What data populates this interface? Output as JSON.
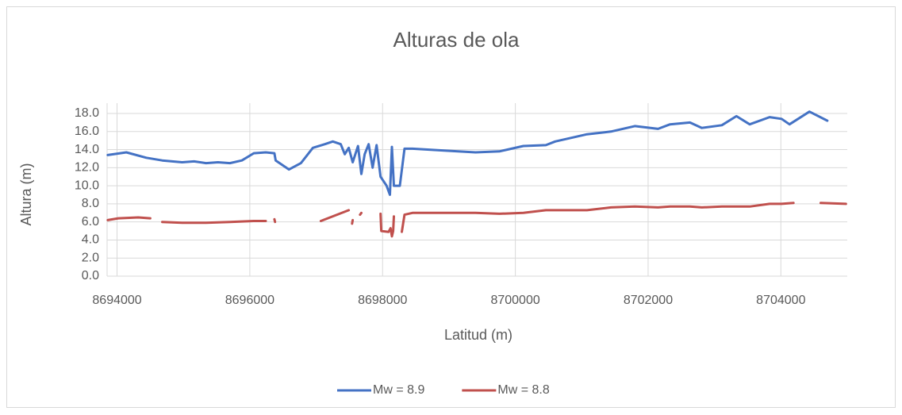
{
  "chart_data": {
    "type": "line",
    "title": "Alturas de ola",
    "xlabel": "Latitud (m)",
    "ylabel": "Altura (m)",
    "xlim": [
      8693850,
      8705000
    ],
    "xticks": [
      8694000,
      8696000,
      8698000,
      8700000,
      8702000,
      8704000
    ],
    "ylim": [
      0,
      18
    ],
    "yticks": [
      {
        "value": 0,
        "label": "0.0"
      },
      {
        "value": 2,
        "label": "2.0"
      },
      {
        "value": 4,
        "label": "4.0"
      },
      {
        "value": 6,
        "label": "6.0"
      },
      {
        "value": 8,
        "label": "8.0"
      },
      {
        "value": 10,
        "label": "10.0"
      },
      {
        "value": 12,
        "label": "12.0"
      },
      {
        "value": 14,
        "label": "14.0"
      },
      {
        "value": 16,
        "label": "16.0"
      },
      {
        "value": 18,
        "label": "18.0"
      }
    ],
    "grid": true,
    "legend": "bottom",
    "series": [
      {
        "name": "Mw = 8.9",
        "color": "#4472c4",
        "x": [
          8693860,
          8694140,
          8694440,
          8694680,
          8694980,
          8695160,
          8695340,
          8695520,
          8695700,
          8695880,
          8696060,
          8696240,
          8696370,
          8696390,
          8696590,
          8696770,
          8696950,
          8697130,
          8697250,
          8697370,
          8697430,
          8697490,
          8697550,
          8697630,
          8697680,
          8697730,
          8697790,
          8697850,
          8697910,
          8697970,
          8698060,
          8698110,
          8698140,
          8698170,
          8698260,
          8698330,
          8698450,
          8698930,
          8699400,
          8699760,
          8700120,
          8700460,
          8700600,
          8701080,
          8701440,
          8701800,
          8702150,
          8702330,
          8702630,
          8702810,
          8703110,
          8703330,
          8703530,
          8703830,
          8704010,
          8704130,
          8704430,
          8704700
        ],
        "values": [
          13.4,
          13.7,
          13.1,
          12.8,
          12.6,
          12.7,
          12.5,
          12.6,
          12.5,
          12.8,
          13.6,
          13.7,
          13.6,
          12.8,
          11.8,
          12.5,
          14.2,
          14.6,
          14.9,
          14.6,
          13.5,
          14.2,
          12.6,
          14.4,
          11.3,
          13.5,
          14.6,
          12.0,
          14.5,
          11.0,
          10.0,
          9.0,
          14.3,
          10.0,
          10.0,
          14.1,
          14.1,
          13.9,
          13.7,
          13.8,
          14.4,
          14.5,
          14.9,
          15.7,
          16.0,
          16.6,
          16.3,
          16.8,
          17.0,
          16.4,
          16.7,
          17.7,
          16.8,
          17.6,
          17.4,
          16.8,
          18.2,
          17.2
        ]
      },
      {
        "name": "Mw = 8.8",
        "color": "#c0504d",
        "x": [
          8693860,
          8694020,
          8694320,
          8694500,
          8694590,
          8694680,
          8694980,
          8695340,
          8695700,
          8696060,
          8696240,
          8696300,
          8696370,
          8696380,
          8696710,
          8697070,
          8697490,
          8697510,
          8697540,
          8697550,
          8697610,
          8697660,
          8697680,
          8697850,
          8697970,
          8697980,
          8698090,
          8698120,
          8698140,
          8698160,
          8698170,
          8698230,
          8698290,
          8698330,
          8698450,
          8698930,
          8699400,
          8699760,
          8700120,
          8700460,
          8700600,
          8701080,
          8701440,
          8701800,
          8702150,
          8702330,
          8702630,
          8702810,
          8703110,
          8703330,
          8703530,
          8703830,
          8704010,
          8704190,
          8704400,
          8704600,
          8704980
        ],
        "values": [
          6.2,
          6.4,
          6.5,
          6.4,
          null,
          6.0,
          5.9,
          5.9,
          6.0,
          6.1,
          6.1,
          null,
          6.3,
          6.0,
          null,
          6.1,
          7.3,
          null,
          5.8,
          6.2,
          null,
          6.8,
          7.0,
          null,
          6.9,
          5.0,
          4.9,
          5.3,
          4.4,
          5.0,
          6.6,
          null,
          4.9,
          6.8,
          7.0,
          7.0,
          7.0,
          6.9,
          7.0,
          7.3,
          7.3,
          7.3,
          7.6,
          7.7,
          7.6,
          7.7,
          7.7,
          7.6,
          7.7,
          7.7,
          7.7,
          8.0,
          8.0,
          8.1,
          null,
          8.1,
          8.0
        ]
      }
    ]
  }
}
